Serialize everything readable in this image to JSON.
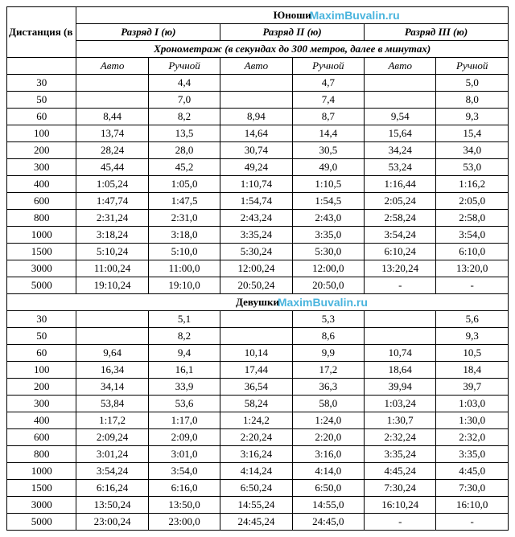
{
  "watermark": "MaximBuvalin.ru",
  "headers": {
    "distance": "Дистанция (в метрах)",
    "rank1": "Разряд I (ю)",
    "rank2": "Разряд II (ю)",
    "rank3": "Разряд III (ю)",
    "timing_note": "Хронометраж (в секундах до 300 метров, далее в минутах)",
    "auto": "Авто",
    "manual": "Ручной"
  },
  "sections": [
    {
      "title": "Юноши",
      "rows": [
        {
          "d": "30",
          "c": [
            "",
            "4,4",
            "",
            "4,7",
            "",
            "5,0"
          ]
        },
        {
          "d": "50",
          "c": [
            "",
            "7,0",
            "",
            "7,4",
            "",
            "8,0"
          ]
        },
        {
          "d": "60",
          "c": [
            "8,44",
            "8,2",
            "8,94",
            "8,7",
            "9,54",
            "9,3"
          ]
        },
        {
          "d": "100",
          "c": [
            "13,74",
            "13,5",
            "14,64",
            "14,4",
            "15,64",
            "15,4"
          ]
        },
        {
          "d": "200",
          "c": [
            "28,24",
            "28,0",
            "30,74",
            "30,5",
            "34,24",
            "34,0"
          ]
        },
        {
          "d": "300",
          "c": [
            "45,44",
            "45,2",
            "49,24",
            "49,0",
            "53,24",
            "53,0"
          ]
        },
        {
          "d": "400",
          "c": [
            "1:05,24",
            "1:05,0",
            "1:10,74",
            "1:10,5",
            "1:16,44",
            "1:16,2"
          ]
        },
        {
          "d": "600",
          "c": [
            "1:47,74",
            "1:47,5",
            "1:54,74",
            "1:54,5",
            "2:05,24",
            "2:05,0"
          ]
        },
        {
          "d": "800",
          "c": [
            "2:31,24",
            "2:31,0",
            "2:43,24",
            "2:43,0",
            "2:58,24",
            "2:58,0"
          ]
        },
        {
          "d": "1000",
          "c": [
            "3:18,24",
            "3:18,0",
            "3:35,24",
            "3:35,0",
            "3:54,24",
            "3:54,0"
          ]
        },
        {
          "d": "1500",
          "c": [
            "5:10,24",
            "5:10,0",
            "5:30,24",
            "5:30,0",
            "6:10,24",
            "6:10,0"
          ]
        },
        {
          "d": "3000",
          "c": [
            "11:00,24",
            "11:00,0",
            "12:00,24",
            "12:00,0",
            "13:20,24",
            "13:20,0"
          ]
        },
        {
          "d": "5000",
          "c": [
            "19:10,24",
            "19:10,0",
            "20:50,24",
            "20:50,0",
            "-",
            "-"
          ]
        }
      ]
    },
    {
      "title": "Девушки",
      "rows": [
        {
          "d": "30",
          "c": [
            "",
            "5,1",
            "",
            "5,3",
            "",
            "5,6"
          ]
        },
        {
          "d": "50",
          "c": [
            "",
            "8,2",
            "",
            "8,6",
            "",
            "9,3"
          ]
        },
        {
          "d": "60",
          "c": [
            "9,64",
            "9,4",
            "10,14",
            "9,9",
            "10,74",
            "10,5"
          ]
        },
        {
          "d": "100",
          "c": [
            "16,34",
            "16,1",
            "17,44",
            "17,2",
            "18,64",
            "18,4"
          ]
        },
        {
          "d": "200",
          "c": [
            "34,14",
            "33,9",
            "36,54",
            "36,3",
            "39,94",
            "39,7"
          ]
        },
        {
          "d": "300",
          "c": [
            "53,84",
            "53,6",
            "58,24",
            "58,0",
            "1:03,24",
            "1:03,0"
          ]
        },
        {
          "d": "400",
          "c": [
            "1:17,2",
            "1:17,0",
            "1:24,2",
            "1:24,0",
            "1:30,7",
            "1:30,0"
          ]
        },
        {
          "d": "600",
          "c": [
            "2:09,24",
            "2:09,0",
            "2:20,24",
            "2:20,0",
            "2:32,24",
            "2:32,0"
          ]
        },
        {
          "d": "800",
          "c": [
            "3:01,24",
            "3:01,0",
            "3:16,24",
            "3:16,0",
            "3:35,24",
            "3:35,0"
          ]
        },
        {
          "d": "1000",
          "c": [
            "3:54,24",
            "3:54,0",
            "4:14,24",
            "4:14,0",
            "4:45,24",
            "4:45,0"
          ]
        },
        {
          "d": "1500",
          "c": [
            "6:16,24",
            "6:16,0",
            "6:50,24",
            "6:50,0",
            "7:30,24",
            "7:30,0"
          ]
        },
        {
          "d": "3000",
          "c": [
            "13:50,24",
            "13:50,0",
            "14:55,24",
            "14:55,0",
            "16:10,24",
            "16:10,0"
          ]
        },
        {
          "d": "5000",
          "c": [
            "23:00,24",
            "23:00,0",
            "24:45,24",
            "24:45,0",
            "-",
            "-"
          ]
        }
      ]
    }
  ]
}
